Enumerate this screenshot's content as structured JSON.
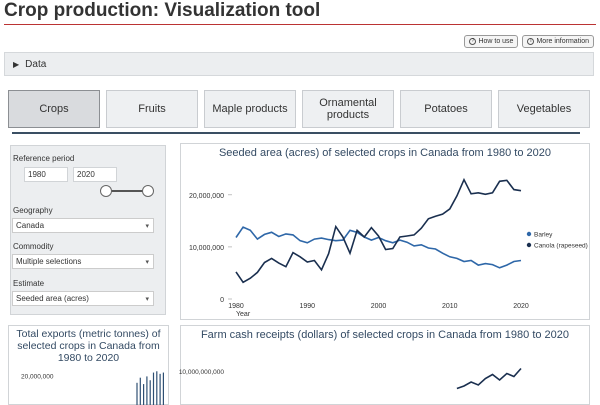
{
  "page_title": "Crop production: Visualization tool",
  "help": {
    "how_to_use": "How to use",
    "more_info": "More information"
  },
  "data_section": {
    "label": "Data"
  },
  "tabs": [
    {
      "label": "Crops",
      "active": true
    },
    {
      "label": "Fruits"
    },
    {
      "label": "Maple products"
    },
    {
      "label": "Ornamental products"
    },
    {
      "label": "Potatoes"
    },
    {
      "label": "Vegetables"
    }
  ],
  "filters": {
    "reference_period_label": "Reference period",
    "period_start": "1980",
    "period_end": "2020",
    "geography_label": "Geography",
    "geography_value": "Canada",
    "commodity_label": "Commodity",
    "commodity_value": "Multiple selections",
    "estimate_label": "Estimate",
    "estimate_value": "Seeded area (acres)"
  },
  "colors": {
    "barley": "#2e67a8",
    "canola": "#1a2f4f",
    "title": "#334a63",
    "accent_rule": "#3a4f63"
  },
  "chart_data": [
    {
      "type": "line",
      "title": "Seeded area (acres) of selected crops in Canada from 1980 to 2020",
      "xlabel": "Year",
      "ylabel": "",
      "xlim": [
        1980,
        2020
      ],
      "ylim": [
        0,
        24000000
      ],
      "x_ticks": [
        "1980",
        "1990",
        "2000",
        "2010",
        "2020"
      ],
      "y_ticks": [
        "0",
        "10,000,000",
        "20,000,000"
      ],
      "legend_position": "right",
      "x": [
        1980,
        1981,
        1982,
        1983,
        1984,
        1985,
        1986,
        1987,
        1988,
        1989,
        1990,
        1991,
        1992,
        1993,
        1994,
        1995,
        1996,
        1997,
        1998,
        1999,
        2000,
        2001,
        2002,
        2003,
        2004,
        2005,
        2006,
        2007,
        2008,
        2009,
        2010,
        2011,
        2012,
        2013,
        2014,
        2015,
        2016,
        2017,
        2018,
        2019,
        2020
      ],
      "series": [
        {
          "name": "Barley",
          "color": "#2e67a8",
          "values": [
            11800000,
            13800000,
            13200000,
            11500000,
            12400000,
            12800000,
            12000000,
            12500000,
            12300000,
            11200000,
            10800000,
            11500000,
            11700000,
            11400000,
            11200000,
            11300000,
            13200000,
            12800000,
            11900000,
            11300000,
            11800000,
            11200000,
            10800000,
            11300000,
            10900000,
            10200000,
            10400000,
            9800000,
            9600000,
            8800000,
            8100000,
            7800000,
            7200000,
            7400000,
            6500000,
            6800000,
            6600000,
            6000000,
            6500000,
            7200000,
            7400000
          ]
        },
        {
          "name": "Canola (rapeseed)",
          "color": "#1a2f4f",
          "values": [
            5200000,
            3200000,
            4000000,
            5100000,
            7000000,
            7800000,
            6900000,
            6200000,
            8900000,
            8100000,
            7100000,
            7400000,
            5600000,
            8700000,
            13900000,
            11900000,
            8800000,
            13200000,
            11900000,
            13700000,
            12100000,
            9500000,
            9700000,
            11900000,
            12100000,
            12300000,
            13600000,
            15400000,
            15900000,
            16300000,
            17300000,
            19800000,
            22900000,
            20200000,
            20400000,
            20100000,
            20400000,
            22600000,
            22800000,
            21000000,
            20800000
          ]
        }
      ]
    },
    {
      "type": "bar",
      "title": "Total exports (metric tonnes) of selected crops in Canada from 1980 to 2020",
      "y_ticks": [
        "20,000,000"
      ],
      "x": [
        2012,
        2013,
        2014,
        2015,
        2016,
        2017,
        2018,
        2019,
        2020
      ],
      "values": [
        15000000,
        19000000,
        14000000,
        20000000,
        17000000,
        23000000,
        24000000,
        22000000,
        23000000
      ],
      "ylim": [
        0,
        25000000
      ]
    },
    {
      "type": "line",
      "title": "Farm cash receipts (dollars) of selected crops in Canada from 1980 to 2020",
      "y_ticks": [
        "10,000,000,000"
      ],
      "xlim": [
        1980,
        2020
      ],
      "ylim": [
        0,
        11000000000
      ],
      "x": [
        2011,
        2012,
        2013,
        2014,
        2015,
        2016,
        2017,
        2018,
        2019,
        2020
      ],
      "values": [
        6500000000,
        7000000000,
        7800000000,
        7200000000,
        8500000000,
        9300000000,
        8200000000,
        9500000000,
        8900000000,
        10500000000
      ]
    }
  ]
}
